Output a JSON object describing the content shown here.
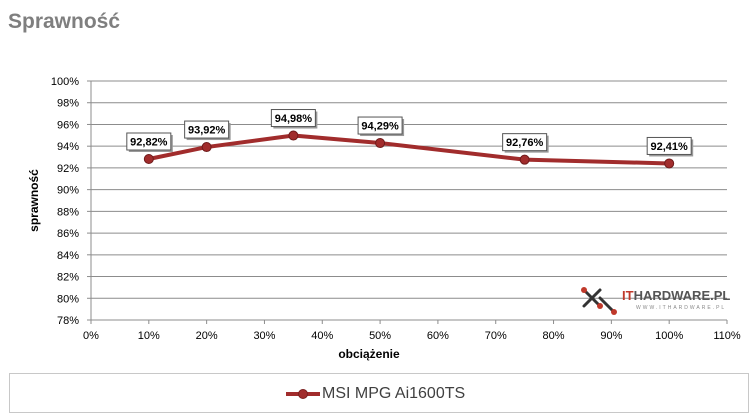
{
  "title": "Sprawność",
  "logo": {
    "brand_prefix": "IT",
    "brand_main": "HARDWARE.PL",
    "sub": "WWW.ITHARDWARE.PL"
  },
  "chart_data": {
    "type": "line",
    "xlabel": "obciążenie",
    "ylabel": "sprawność",
    "xlim": [
      0,
      110
    ],
    "ylim": [
      78,
      100
    ],
    "x_ticks": [
      "0%",
      "10%",
      "20%",
      "30%",
      "40%",
      "50%",
      "60%",
      "70%",
      "80%",
      "90%",
      "100%",
      "110%"
    ],
    "y_ticks": [
      "78%",
      "80%",
      "82%",
      "84%",
      "86%",
      "88%",
      "90%",
      "92%",
      "94%",
      "96%",
      "98%",
      "100%"
    ],
    "grid": "horizontal",
    "series": [
      {
        "name": "MSI MPG Ai1600TS",
        "color": "#a12c2c",
        "x": [
          10,
          20,
          35,
          50,
          75,
          100
        ],
        "y": [
          92.82,
          93.92,
          94.98,
          94.29,
          92.76,
          92.41
        ],
        "labels": [
          "92,82%",
          "93,92%",
          "94,98%",
          "94,29%",
          "92,76%",
          "92,41%"
        ]
      }
    ],
    "legend_position": "bottom"
  }
}
